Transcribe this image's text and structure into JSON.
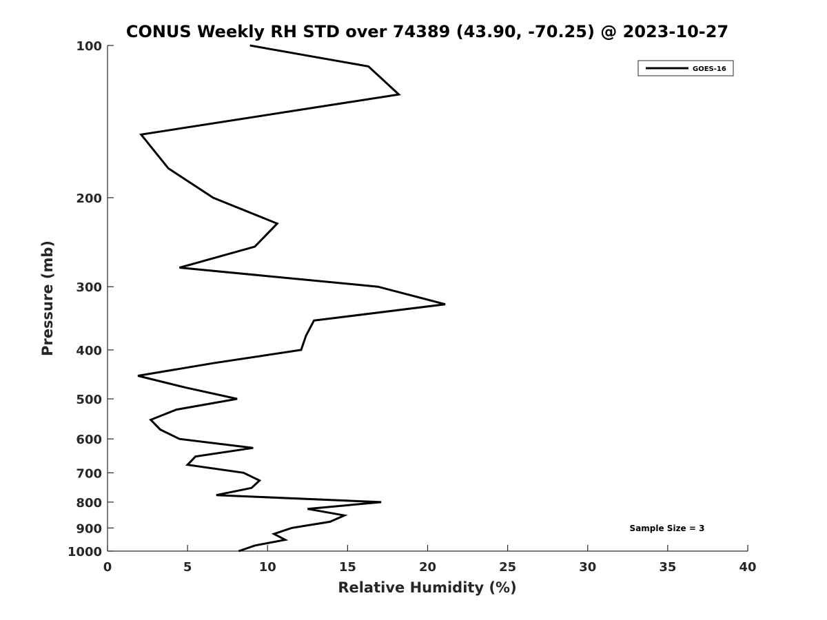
{
  "chart_data": {
    "type": "line",
    "title": "CONUS Weekly RH STD over 74389 (43.90, -70.25) @ 2023-10-27",
    "xlabel": "Relative Humidity (%)",
    "ylabel": "Pressure (mb)",
    "xlim": [
      0,
      40
    ],
    "ylim": [
      100,
      1000
    ],
    "y_scale": "log",
    "y_direction": "reversed",
    "grid": false,
    "legend_position": "top-right",
    "x_ticks": [
      "0",
      "5",
      "10",
      "15",
      "20",
      "25",
      "30",
      "35",
      "40"
    ],
    "y_ticks": [
      "100",
      "200",
      "300",
      "400",
      "500",
      "600",
      "700",
      "800",
      "900",
      "1000"
    ],
    "series": [
      {
        "name": "GOES-16",
        "color": "#000000",
        "points": [
          [
            8.2,
            1000
          ],
          [
            9.2,
            975
          ],
          [
            11.1,
            950
          ],
          [
            10.4,
            925
          ],
          [
            11.5,
            900
          ],
          [
            13.9,
            875
          ],
          [
            14.8,
            850
          ],
          [
            12.5,
            825
          ],
          [
            17.1,
            800
          ],
          [
            6.8,
            775
          ],
          [
            9.0,
            750
          ],
          [
            9.5,
            725
          ],
          [
            8.5,
            700
          ],
          [
            5.0,
            675
          ],
          [
            5.5,
            650
          ],
          [
            9.1,
            625
          ],
          [
            4.5,
            600
          ],
          [
            3.3,
            575
          ],
          [
            2.7,
            550
          ],
          [
            4.3,
            525
          ],
          [
            8.1,
            500
          ],
          [
            4.9,
            475
          ],
          [
            1.9,
            450
          ],
          [
            6.6,
            425
          ],
          [
            12.1,
            400
          ],
          [
            12.4,
            375
          ],
          [
            12.9,
            350
          ],
          [
            21.1,
            325
          ],
          [
            16.9,
            300
          ],
          [
            4.5,
            275
          ],
          [
            9.2,
            250
          ],
          [
            10.6,
            225
          ],
          [
            6.6,
            200
          ],
          [
            3.8,
            175
          ],
          [
            2.1,
            150
          ],
          [
            18.2,
            125
          ],
          [
            16.3,
            110
          ],
          [
            8.9,
            100
          ]
        ]
      }
    ],
    "annotation": "Sample Size = 3"
  }
}
